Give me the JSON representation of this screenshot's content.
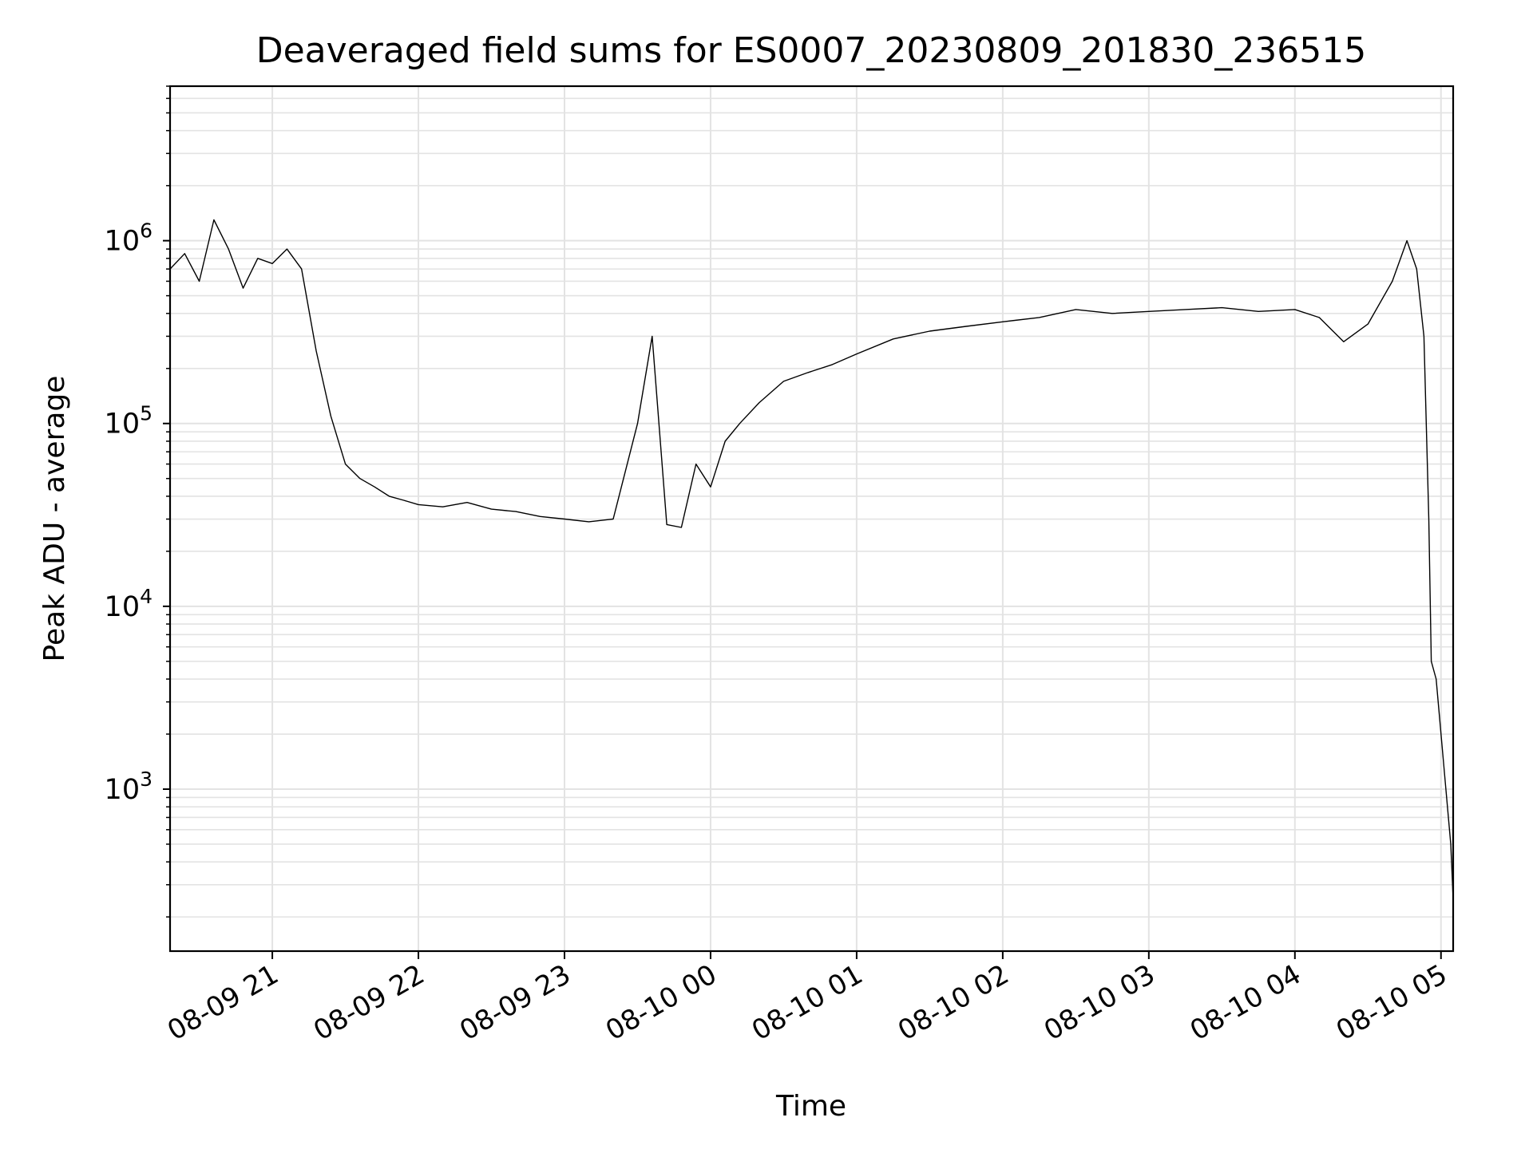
{
  "chart_data": {
    "type": "line",
    "title": "Deaveraged field sums for ES0007_20230809_201830_236515",
    "xlabel": "Time",
    "ylabel": "Peak ADU - average",
    "yscale": "log",
    "grid": true,
    "legend": "none",
    "line_color": "#000000",
    "grid_color": "#e3e3e3",
    "xlim": [
      "2023-08-09 20:18",
      "2023-08-10 05:05"
    ],
    "ylim": [
      130,
      7000000
    ],
    "x_ticks": [
      {
        "t": "2023-08-09 21:00",
        "label": "08-09 21"
      },
      {
        "t": "2023-08-09 22:00",
        "label": "08-09 22"
      },
      {
        "t": "2023-08-09 23:00",
        "label": "08-09 23"
      },
      {
        "t": "2023-08-10 00:00",
        "label": "08-10 00"
      },
      {
        "t": "2023-08-10 01:00",
        "label": "08-10 01"
      },
      {
        "t": "2023-08-10 02:00",
        "label": "08-10 02"
      },
      {
        "t": "2023-08-10 03:00",
        "label": "08-10 03"
      },
      {
        "t": "2023-08-10 04:00",
        "label": "08-10 04"
      },
      {
        "t": "2023-08-10 05:00",
        "label": "08-10 05"
      }
    ],
    "y_ticks": [
      {
        "value": 1000,
        "base": "10",
        "exp": "3"
      },
      {
        "value": 10000,
        "base": "10",
        "exp": "4"
      },
      {
        "value": 100000,
        "base": "10",
        "exp": "5"
      },
      {
        "value": 1000000,
        "base": "10",
        "exp": "6"
      }
    ],
    "series": [
      {
        "points": [
          [
            "2023-08-09 20:18",
            700000
          ],
          [
            "2023-08-09 20:24",
            850000
          ],
          [
            "2023-08-09 20:30",
            600000
          ],
          [
            "2023-08-09 20:36",
            1300000
          ],
          [
            "2023-08-09 20:42",
            900000
          ],
          [
            "2023-08-09 20:48",
            550000
          ],
          [
            "2023-08-09 20:54",
            800000
          ],
          [
            "2023-08-09 21:00",
            750000
          ],
          [
            "2023-08-09 21:06",
            900000
          ],
          [
            "2023-08-09 21:12",
            700000
          ],
          [
            "2023-08-09 21:18",
            250000
          ],
          [
            "2023-08-09 21:24",
            110000
          ],
          [
            "2023-08-09 21:30",
            60000
          ],
          [
            "2023-08-09 21:36",
            50000
          ],
          [
            "2023-08-09 21:42",
            45000
          ],
          [
            "2023-08-09 21:48",
            40000
          ],
          [
            "2023-08-09 21:54",
            38000
          ],
          [
            "2023-08-09 22:00",
            36000
          ],
          [
            "2023-08-09 22:10",
            35000
          ],
          [
            "2023-08-09 22:20",
            37000
          ],
          [
            "2023-08-09 22:30",
            34000
          ],
          [
            "2023-08-09 22:40",
            33000
          ],
          [
            "2023-08-09 22:50",
            31000
          ],
          [
            "2023-08-09 23:00",
            30000
          ],
          [
            "2023-08-09 23:10",
            29000
          ],
          [
            "2023-08-09 23:20",
            30000
          ],
          [
            "2023-08-09 23:30",
            100000
          ],
          [
            "2023-08-09 23:36",
            300000
          ],
          [
            "2023-08-09 23:42",
            28000
          ],
          [
            "2023-08-09 23:48",
            27000
          ],
          [
            "2023-08-09 23:54",
            60000
          ],
          [
            "2023-08-10 00:00",
            45000
          ],
          [
            "2023-08-10 00:06",
            80000
          ],
          [
            "2023-08-10 00:12",
            100000
          ],
          [
            "2023-08-10 00:20",
            130000
          ],
          [
            "2023-08-10 00:30",
            170000
          ],
          [
            "2023-08-10 00:40",
            190000
          ],
          [
            "2023-08-10 00:50",
            210000
          ],
          [
            "2023-08-10 01:00",
            240000
          ],
          [
            "2023-08-10 01:15",
            290000
          ],
          [
            "2023-08-10 01:30",
            320000
          ],
          [
            "2023-08-10 01:45",
            340000
          ],
          [
            "2023-08-10 02:00",
            360000
          ],
          [
            "2023-08-10 02:15",
            380000
          ],
          [
            "2023-08-10 02:30",
            420000
          ],
          [
            "2023-08-10 02:45",
            400000
          ],
          [
            "2023-08-10 03:00",
            410000
          ],
          [
            "2023-08-10 03:15",
            420000
          ],
          [
            "2023-08-10 03:30",
            430000
          ],
          [
            "2023-08-10 03:45",
            410000
          ],
          [
            "2023-08-10 04:00",
            420000
          ],
          [
            "2023-08-10 04:10",
            380000
          ],
          [
            "2023-08-10 04:20",
            280000
          ],
          [
            "2023-08-10 04:30",
            350000
          ],
          [
            "2023-08-10 04:40",
            600000
          ],
          [
            "2023-08-10 04:46",
            1000000
          ],
          [
            "2023-08-10 04:50",
            700000
          ],
          [
            "2023-08-10 04:53",
            300000
          ],
          [
            "2023-08-10 04:55",
            30000
          ],
          [
            "2023-08-10 04:56",
            5000
          ],
          [
            "2023-08-10 04:58",
            4000
          ],
          [
            "2023-08-10 05:00",
            2000
          ],
          [
            "2023-08-10 05:02",
            1000
          ],
          [
            "2023-08-10 05:04",
            500
          ],
          [
            "2023-08-10 05:05",
            250
          ]
        ]
      }
    ]
  }
}
